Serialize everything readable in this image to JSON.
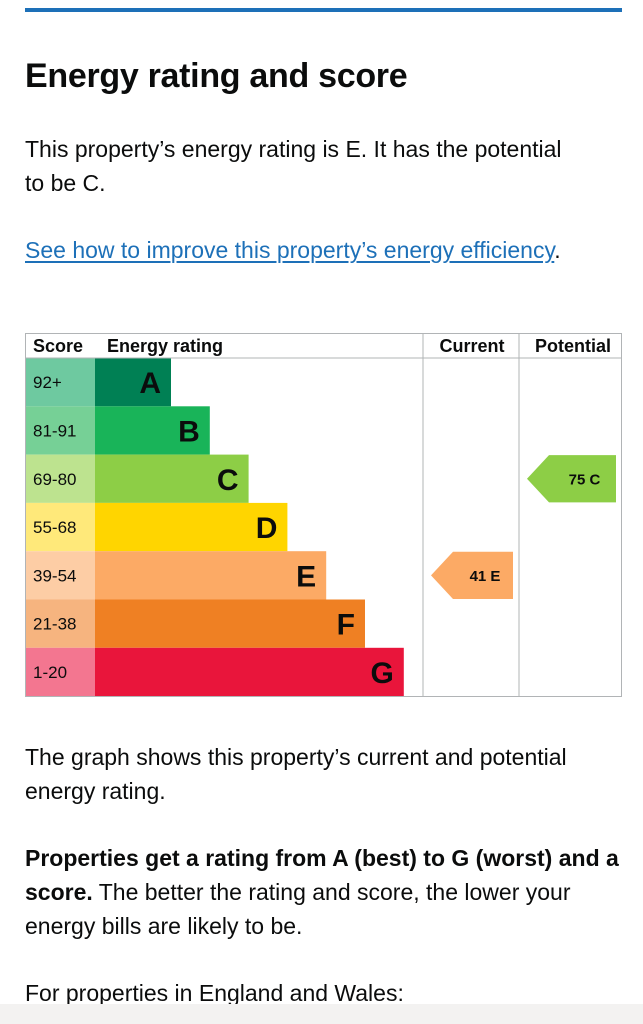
{
  "heading": "Energy rating and score",
  "intro": "This property’s energy rating is E. It has the potential to be C.",
  "improve_link": "See how to improve this property’s energy efficiency",
  "improve_link_suffix": ".",
  "chart_data": {
    "type": "bar",
    "headers": {
      "score": "Score",
      "rating": "Energy rating",
      "current": "Current",
      "potential": "Potential"
    },
    "bands": [
      {
        "letter": "A",
        "range": "92+",
        "color": "#008054",
        "score_bg": "#6ec9a0"
      },
      {
        "letter": "B",
        "range": "81-91",
        "color": "#19b459",
        "score_bg": "#76d096"
      },
      {
        "letter": "C",
        "range": "69-80",
        "color": "#8dce46",
        "score_bg": "#bde38f"
      },
      {
        "letter": "D",
        "range": "55-68",
        "color": "#ffd500",
        "score_bg": "#ffe97a"
      },
      {
        "letter": "E",
        "range": "39-54",
        "color": "#fcaa65",
        "score_bg": "#fdcda5"
      },
      {
        "letter": "F",
        "range": "21-38",
        "color": "#ef8023",
        "score_bg": "#f6b47f"
      },
      {
        "letter": "G",
        "range": "1-20",
        "color": "#e9153b",
        "score_bg": "#f37690"
      }
    ],
    "current": {
      "score": 41,
      "band": "E",
      "label": "41 E"
    },
    "potential": {
      "score": 75,
      "band": "C",
      "label": "75 C"
    }
  },
  "graph_note": "The graph shows this property’s current and potential energy rating.",
  "ratings_bold": "Properties get a rating from A (best) to G (worst) and a score.",
  "ratings_rest": " The better the rating and score, the lower your energy bills are likely to be.",
  "england_wales": "For properties in England and Wales:"
}
